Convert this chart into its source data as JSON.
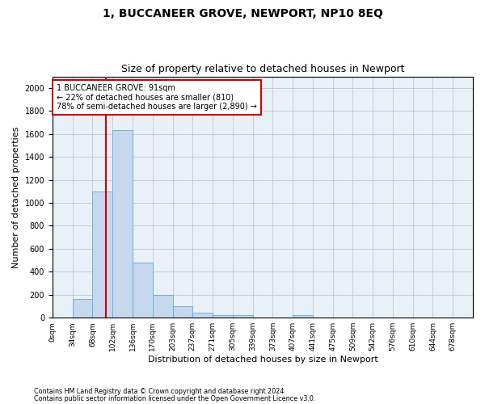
{
  "title": "1, BUCCANEER GROVE, NEWPORT, NP10 8EQ",
  "subtitle": "Size of property relative to detached houses in Newport",
  "xlabel": "Distribution of detached houses by size in Newport",
  "ylabel": "Number of detached properties",
  "bar_categories": [
    "0sqm",
    "34sqm",
    "68sqm",
    "102sqm",
    "136sqm",
    "170sqm",
    "203sqm",
    "237sqm",
    "271sqm",
    "305sqm",
    "339sqm",
    "373sqm",
    "407sqm",
    "441sqm",
    "475sqm",
    "509sqm",
    "542sqm",
    "576sqm",
    "610sqm",
    "644sqm",
    "678sqm"
  ],
  "bar_values": [
    0,
    165,
    1095,
    1635,
    480,
    200,
    100,
    45,
    25,
    20,
    0,
    0,
    20,
    0,
    0,
    0,
    0,
    0,
    0,
    0,
    0
  ],
  "bar_color": "#c5d8ee",
  "bar_edge_color": "#6aaad4",
  "vline_color": "#cc0000",
  "annotation_text": "1 BUCCANEER GROVE: 91sqm\n← 22% of detached houses are smaller (810)\n78% of semi-detached houses are larger (2,890) →",
  "annotation_box_color": "#ffffff",
  "annotation_box_edge": "#cc0000",
  "ylim": [
    0,
    2100
  ],
  "yticks": [
    0,
    200,
    400,
    600,
    800,
    1000,
    1200,
    1400,
    1600,
    1800,
    2000
  ],
  "footer_line1": "Contains HM Land Registry data © Crown copyright and database right 2024.",
  "footer_line2": "Contains public sector information licensed under the Open Government Licence v3.0.",
  "bg_color": "#ffffff",
  "plot_bg_color": "#e8f0f8",
  "grid_color": "#c0c8d8"
}
